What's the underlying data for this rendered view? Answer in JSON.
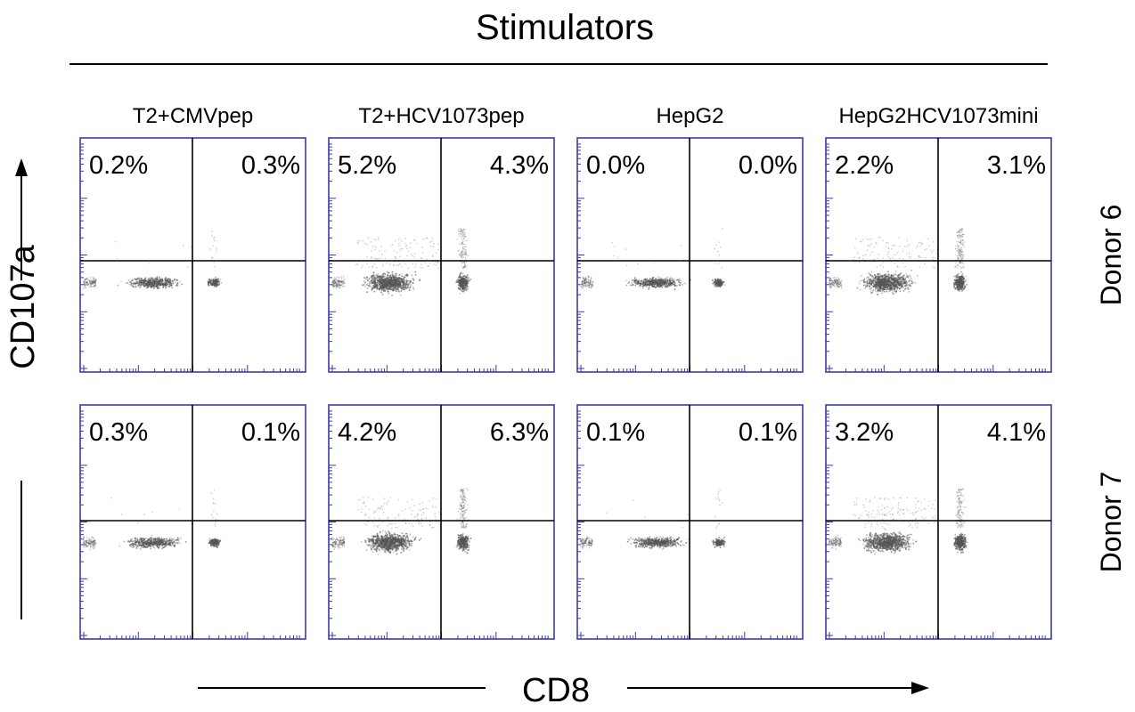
{
  "figure": {
    "title": "Stimulators",
    "x_axis_label": "CD8",
    "y_axis_label": "CD107a",
    "colors": {
      "frame": "#3b3ba8",
      "gate": "#000000",
      "events": "#555555"
    }
  },
  "chart_data": {
    "type": "scatter",
    "title": "Stimulators",
    "xlabel": "CD8",
    "ylabel": "CD107a",
    "columns": [
      "T2+CMVpep",
      "T2+HCV1073pep",
      "HepG2",
      "HepG2HCV1073mini"
    ],
    "rows": [
      "Donor 6",
      "Donor 7"
    ],
    "panels": [
      {
        "row": "Donor 6",
        "column": "T2+CMVpep",
        "upper_left": "0.2%",
        "upper_right": "0.3%"
      },
      {
        "row": "Donor 6",
        "column": "T2+HCV1073pep",
        "upper_left": "5.2%",
        "upper_right": "4.3%"
      },
      {
        "row": "Donor 6",
        "column": "HepG2",
        "upper_left": "0.0%",
        "upper_right": "0.0%"
      },
      {
        "row": "Donor 6",
        "column": "HepG2HCV1073mini",
        "upper_left": "2.2%",
        "upper_right": "3.1%"
      },
      {
        "row": "Donor 7",
        "column": "T2+CMVpep",
        "upper_left": "0.3%",
        "upper_right": "0.1%"
      },
      {
        "row": "Donor 7",
        "column": "T2+HCV1073pep",
        "upper_left": "4.2%",
        "upper_right": "6.3%"
      },
      {
        "row": "Donor 7",
        "column": "HepG2",
        "upper_left": "0.1%",
        "upper_right": "0.1%"
      },
      {
        "row": "Donor 7",
        "column": "HepG2HCV1073mini",
        "upper_left": "3.2%",
        "upper_right": "4.1%"
      }
    ]
  }
}
